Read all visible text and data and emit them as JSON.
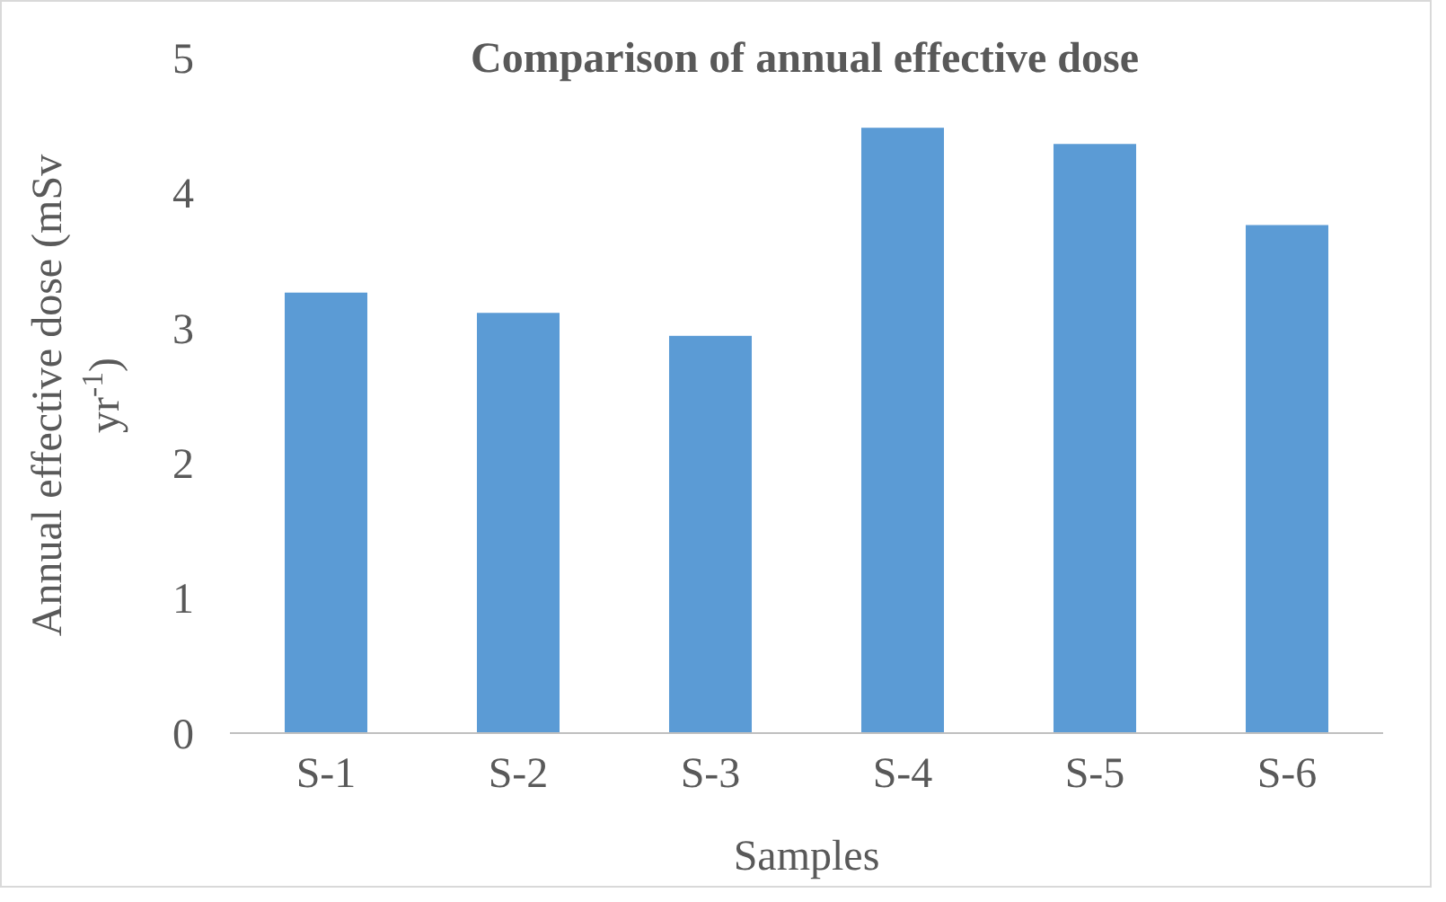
{
  "chart_data": {
    "type": "bar",
    "title": "Comparison of annual effective dose",
    "xlabel": "Samples",
    "ylabel": "Annual effective dose (mSv yr$^{-1}$)",
    "categories": [
      "S-1",
      "S-2",
      "S-3",
      "S-4",
      "S-5",
      "S-6"
    ],
    "values": [
      3.26,
      3.11,
      2.94,
      4.48,
      4.36,
      3.76
    ],
    "color": "#5b9bd5",
    "ylim": [
      0,
      5
    ],
    "yticks": [
      0,
      1,
      2,
      3,
      4,
      5
    ],
    "grid": false
  }
}
